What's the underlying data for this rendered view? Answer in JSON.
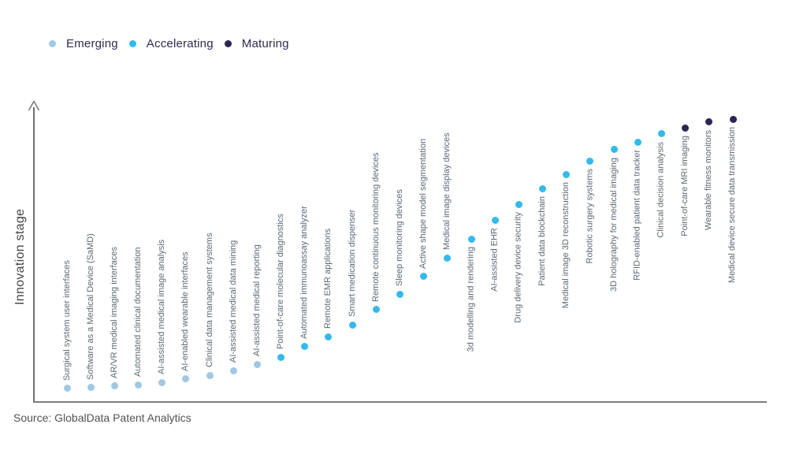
{
  "legend": {
    "items": [
      {
        "label": "Emerging",
        "stage": "emerging"
      },
      {
        "label": "Accelerating",
        "stage": "accelerating"
      },
      {
        "label": "Maturing",
        "stage": "maturing"
      }
    ]
  },
  "axis": {
    "y_label": "Innovation stage"
  },
  "source": "Source: GlobalData Patent Analytics",
  "colors": {
    "emerging": "#9fc8e3",
    "accelerating": "#34b9ee",
    "maturing": "#2c2451",
    "legend_text": "#2e2b4e",
    "label_text": "#5c6874",
    "axis": "#6e6e6e",
    "source_text": "#525252",
    "background": "#ffffff"
  },
  "chart_data": {
    "type": "scatter",
    "title": "",
    "xlabel": "",
    "ylabel": "Innovation stage",
    "legend_position": "top-left",
    "grid": false,
    "y_axis_scale": "qualitative (no numeric ticks); values below are relative stage height 0-100",
    "series_names": [
      "Emerging",
      "Accelerating",
      "Maturing"
    ],
    "points": [
      {
        "label": "Surgical system user interfaces",
        "stage": "emerging",
        "value": 4.8
      },
      {
        "label": "Software as a Medical Device (SaMD)",
        "stage": "emerging",
        "value": 5.1
      },
      {
        "label": "AR/VR medical imaging interfaces",
        "stage": "emerging",
        "value": 5.6
      },
      {
        "label": "Automated clinical documentation",
        "stage": "emerging",
        "value": 6.1
      },
      {
        "label": "AI-assisted medical image analysis",
        "stage": "emerging",
        "value": 6.9
      },
      {
        "label": "AI-enabled wearable interfaces",
        "stage": "emerging",
        "value": 8.0
      },
      {
        "label": "Clinical data management systems",
        "stage": "emerging",
        "value": 9.3
      },
      {
        "label": "AI-assisted medical data mining",
        "stage": "emerging",
        "value": 10.9
      },
      {
        "label": "AI-assisted medical reporting",
        "stage": "emerging",
        "value": 13.0
      },
      {
        "label": "Point-of-care molecular diagnostics",
        "stage": "accelerating",
        "value": 15.4
      },
      {
        "label": "Automated immunoassay analyzer",
        "stage": "accelerating",
        "value": 18.9
      },
      {
        "label": "Remote EMR applications",
        "stage": "accelerating",
        "value": 22.3
      },
      {
        "label": "Smart medication dispenser",
        "stage": "accelerating",
        "value": 26.3
      },
      {
        "label": "Remote continuous monitoring devices",
        "stage": "accelerating",
        "value": 31.4
      },
      {
        "label": "Sleep monitoring devices",
        "stage": "accelerating",
        "value": 36.7
      },
      {
        "label": "Active shape model segmentation",
        "stage": "accelerating",
        "value": 42.6
      },
      {
        "label": "Medical image display devices",
        "stage": "accelerating",
        "value": 48.9
      },
      {
        "label": "3d modelling and rendering",
        "stage": "accelerating",
        "value": 55.3
      },
      {
        "label": "AI-assisted EHR",
        "stage": "accelerating",
        "value": 61.7
      },
      {
        "label": "Drug delivery device security",
        "stage": "accelerating",
        "value": 67.0
      },
      {
        "label": "Patient data blockchain",
        "stage": "accelerating",
        "value": 72.3
      },
      {
        "label": "Medical image 3D reconstruction",
        "stage": "accelerating",
        "value": 77.1
      },
      {
        "label": "Robotic surgery systems",
        "stage": "accelerating",
        "value": 81.6
      },
      {
        "label": "3D holography for medical imaging",
        "stage": "accelerating",
        "value": 85.4
      },
      {
        "label": "RFID-enabled patient data tracker",
        "stage": "accelerating",
        "value": 88.0
      },
      {
        "label": "Clinical decision analysis",
        "stage": "accelerating",
        "value": 90.7
      },
      {
        "label": "Point-of-care MRI imaging",
        "stage": "maturing",
        "value": 92.8
      },
      {
        "label": "Wearable fitness monitors",
        "stage": "maturing",
        "value": 94.7
      },
      {
        "label": "Medical device secure data transmission",
        "stage": "maturing",
        "value": 95.7
      }
    ]
  }
}
